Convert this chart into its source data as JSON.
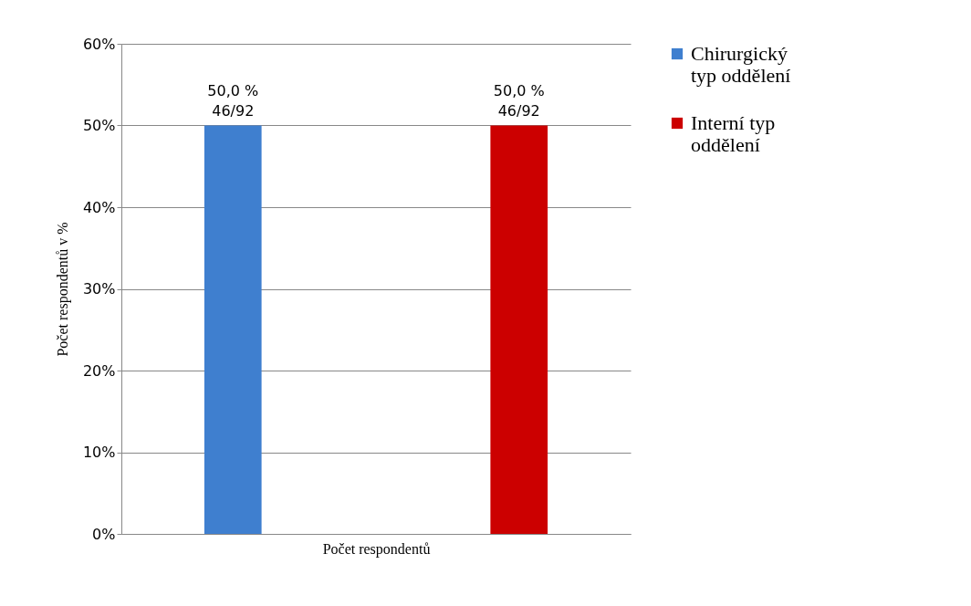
{
  "chart_data": {
    "type": "bar",
    "xlabel": "Počet respondentů",
    "ylabel": "Počet respondentů v %",
    "categories": [
      null
    ],
    "series": [
      {
        "name": "Chirurgický typ oddělení",
        "color": "#3f7fcf",
        "values": [
          50
        ],
        "value_labels": [
          "50,0 %\n46/92"
        ]
      },
      {
        "name": "Interní typ oddělení",
        "color": "#cc0000",
        "values": [
          50
        ],
        "value_labels": [
          "50,0 %\n46/92"
        ]
      }
    ],
    "ylim": [
      0,
      60
    ],
    "yticks": [
      {
        "value": 0,
        "label": "0%"
      },
      {
        "value": 10,
        "label": "10%"
      },
      {
        "value": 20,
        "label": "20%"
      },
      {
        "value": 30,
        "label": "30%"
      },
      {
        "value": 40,
        "label": "40%"
      },
      {
        "value": 50,
        "label": "50%"
      },
      {
        "value": 60,
        "label": "60%"
      }
    ],
    "grid": "y",
    "legend": "right"
  }
}
